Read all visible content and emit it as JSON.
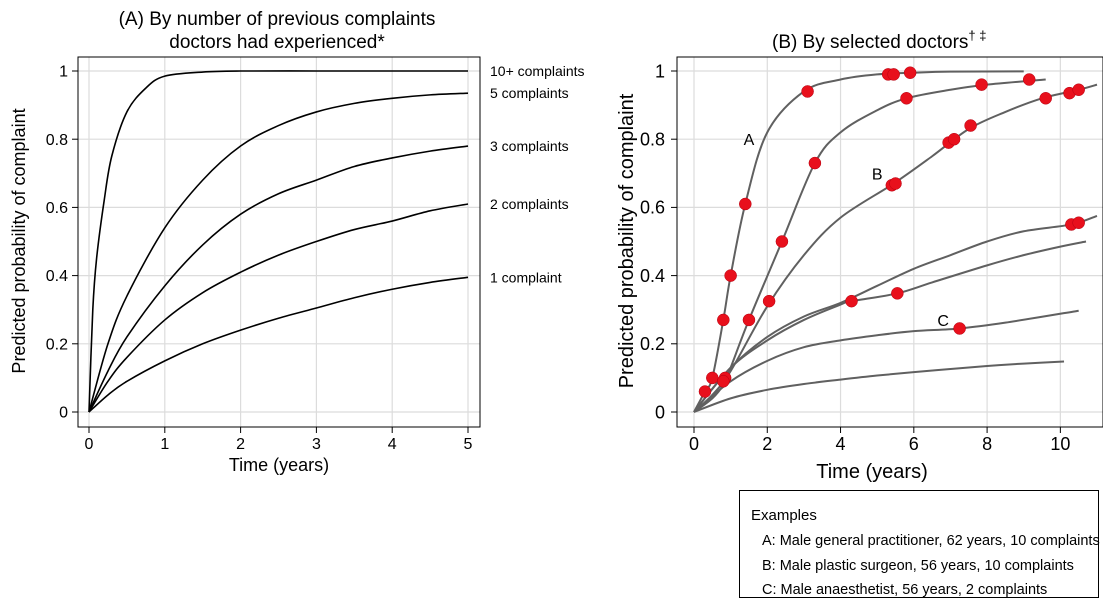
{
  "panel_a": {
    "title_line1": "(A) By number of previous complaints",
    "title_line2": "doctors had experienced*"
  },
  "panel_b": {
    "title": "(B) By selected doctors",
    "title_marks": "† ‡"
  },
  "legend": {
    "title": "Examples",
    "lines": [
      "A: Male general practitioner, 62 years, 10 complaints",
      "B: Male plastic surgeon, 56 years, 10 complaints",
      "C: Male anaesthetist, 56 years, 2 complaints"
    ]
  },
  "colors": {
    "curve_a": "#000000",
    "curve_b": "#606060",
    "marker": "#e8101c",
    "grid": "#dcdcdc"
  },
  "chart_data": [
    {
      "type": "line",
      "title": "(A) By number of previous complaints doctors had experienced*",
      "xlabel": "Time (years)",
      "ylabel": "Predicted probability of complaint",
      "xlim": [
        0,
        5
      ],
      "ylim": [
        0,
        1
      ],
      "xticks": [
        0,
        1,
        2,
        3,
        4,
        5
      ],
      "yticks": [
        0,
        0.2,
        0.4,
        0.6,
        0.8,
        1
      ],
      "grid": true,
      "legend_placement": "right (inline series labels)",
      "series": [
        {
          "name": "10+ complaints",
          "x": [
            0,
            0.05,
            0.1,
            0.2,
            0.3,
            0.5,
            0.75,
            1,
            1.5,
            2,
            3,
            4,
            5
          ],
          "y": [
            0,
            0.3,
            0.45,
            0.62,
            0.75,
            0.88,
            0.95,
            0.985,
            0.997,
            1,
            1,
            1,
            1
          ]
        },
        {
          "name": "5 complaints",
          "x": [
            0,
            0.25,
            0.5,
            1,
            1.5,
            2,
            2.5,
            3,
            3.5,
            4,
            4.5,
            5
          ],
          "y": [
            0,
            0.2,
            0.34,
            0.54,
            0.68,
            0.78,
            0.84,
            0.88,
            0.905,
            0.92,
            0.93,
            0.935
          ]
        },
        {
          "name": "3 complaints",
          "x": [
            0,
            0.25,
            0.5,
            1,
            1.5,
            2,
            2.5,
            3,
            3.5,
            4,
            4.5,
            5
          ],
          "y": [
            0,
            0.12,
            0.22,
            0.37,
            0.49,
            0.58,
            0.64,
            0.68,
            0.72,
            0.745,
            0.765,
            0.78
          ]
        },
        {
          "name": "2 complaints",
          "x": [
            0,
            0.25,
            0.5,
            1,
            1.5,
            2,
            2.5,
            3,
            3.5,
            4,
            4.5,
            5
          ],
          "y": [
            0,
            0.09,
            0.16,
            0.27,
            0.35,
            0.41,
            0.46,
            0.5,
            0.535,
            0.56,
            0.59,
            0.61
          ]
        },
        {
          "name": "1 complaint",
          "x": [
            0,
            0.25,
            0.5,
            1,
            1.5,
            2,
            2.5,
            3,
            3.5,
            4,
            4.5,
            5
          ],
          "y": [
            0,
            0.05,
            0.09,
            0.15,
            0.2,
            0.24,
            0.275,
            0.305,
            0.335,
            0.36,
            0.38,
            0.395
          ]
        }
      ]
    },
    {
      "type": "line",
      "title": "(B) By selected doctors† ‡",
      "xlabel": "Time (years)",
      "ylabel": "Predicted probability of complaint",
      "xlim": [
        0,
        11
      ],
      "ylim": [
        0,
        1
      ],
      "xticks": [
        0,
        2,
        4,
        6,
        8,
        10
      ],
      "yticks": [
        0,
        0.2,
        0.4,
        0.6,
        0.8,
        1
      ],
      "grid": true,
      "annotations": [
        {
          "text": "A",
          "x": 1.5,
          "y": 0.8
        },
        {
          "text": "B",
          "x": 5.0,
          "y": 0.7
        },
        {
          "text": "C",
          "x": 6.8,
          "y": 0.27
        }
      ],
      "series": [
        {
          "x": [
            0,
            0.3,
            0.5,
            0.8,
            1.0,
            1.4,
            2.0,
            3.0,
            4.0,
            5.0,
            6.0,
            7.0,
            9.0
          ],
          "y": [
            0,
            0.06,
            0.1,
            0.27,
            0.4,
            0.61,
            0.82,
            0.94,
            0.975,
            0.99,
            0.995,
            0.998,
            0.999
          ],
          "points_x": [
            0.3,
            0.5,
            0.8,
            1.0,
            1.4,
            3.1,
            5.3,
            5.45,
            5.9
          ],
          "points_y": [
            0.06,
            0.1,
            0.27,
            0.4,
            0.61,
            0.94,
            0.99,
            0.99,
            0.995
          ]
        },
        {
          "x": [
            0,
            0.5,
            0.8,
            1.0,
            1.5,
            2.4,
            3.3,
            4.0,
            5.0,
            5.8,
            7.0,
            8.0,
            9.6
          ],
          "y": [
            0,
            0.04,
            0.08,
            0.13,
            0.27,
            0.5,
            0.73,
            0.82,
            0.885,
            0.92,
            0.945,
            0.96,
            0.975
          ],
          "points_x": [
            0.85,
            1.5,
            2.4,
            3.3,
            5.8,
            7.85,
            9.15
          ],
          "points_y": [
            0.1,
            0.27,
            0.5,
            0.73,
            0.92,
            0.96,
            0.975
          ]
        },
        {
          "x": [
            0,
            0.5,
            1.0,
            2.0,
            3.0,
            4.0,
            5.45,
            6.5,
            7.5,
            8.5,
            9.5,
            10.5,
            11.0
          ],
          "y": [
            0,
            0.05,
            0.12,
            0.31,
            0.46,
            0.57,
            0.67,
            0.75,
            0.83,
            0.88,
            0.92,
            0.945,
            0.96
          ],
          "points_x": [
            0.8,
            2.05,
            5.4,
            5.5,
            6.95,
            7.1,
            7.55,
            9.6,
            10.25,
            10.5
          ],
          "points_y": [
            0.09,
            0.325,
            0.665,
            0.67,
            0.79,
            0.8,
            0.84,
            0.92,
            0.935,
            0.945
          ]
        },
        {
          "x": [
            0,
            1.0,
            2.0,
            3.0,
            4.0,
            5.0,
            6.0,
            7.0,
            8.0,
            9.0,
            10.3,
            11.0
          ],
          "y": [
            0,
            0.13,
            0.22,
            0.28,
            0.32,
            0.37,
            0.42,
            0.46,
            0.5,
            0.53,
            0.55,
            0.575
          ],
          "points_x": [
            10.3,
            10.5
          ],
          "points_y": [
            0.55,
            0.555
          ]
        },
        {
          "x": [
            0,
            1.0,
            2.0,
            3.0,
            4.0,
            4.3,
            5.55,
            6.5,
            8.0,
            9.0,
            10.0,
            10.7
          ],
          "y": [
            0,
            0.13,
            0.21,
            0.27,
            0.315,
            0.325,
            0.348,
            0.38,
            0.43,
            0.46,
            0.485,
            0.5
          ],
          "points_x": [
            4.3,
            5.55
          ],
          "points_y": [
            0.325,
            0.348
          ]
        },
        {
          "x": [
            0,
            1.0,
            2.0,
            3.0,
            4.0,
            5.0,
            6.0,
            7.25,
            8.5,
            10.5
          ],
          "y": [
            0,
            0.09,
            0.15,
            0.19,
            0.21,
            0.225,
            0.237,
            0.245,
            0.262,
            0.297
          ],
          "points_x": [
            7.25
          ],
          "points_y": [
            0.245
          ]
        },
        {
          "x": [
            0,
            1.0,
            2.0,
            3.0,
            4.0,
            5.0,
            6.0,
            7.0,
            8.0,
            9.0,
            10.1
          ],
          "y": [
            0,
            0.04,
            0.065,
            0.082,
            0.095,
            0.107,
            0.117,
            0.126,
            0.135,
            0.142,
            0.148
          ]
        }
      ]
    }
  ]
}
